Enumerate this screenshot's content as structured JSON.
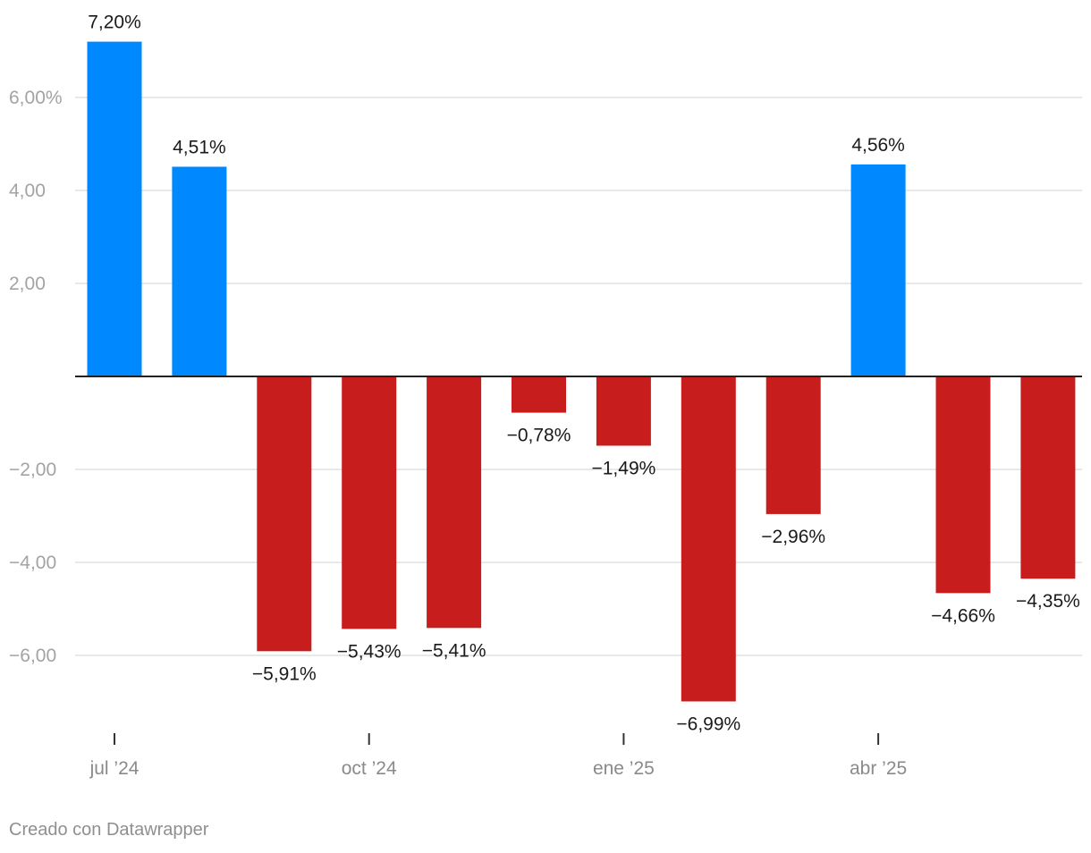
{
  "chart_data": {
    "type": "bar",
    "categories": [
      "jul 2024",
      "ago 2024",
      "sep 2024",
      "oct 2024",
      "nov 2024",
      "dic 2024",
      "ene 2025",
      "feb 2025",
      "mar 2025",
      "abr 2025",
      "may 2025",
      "jun 2025"
    ],
    "values": [
      7.2,
      4.51,
      -5.91,
      -5.43,
      -5.41,
      -0.78,
      -1.49,
      -6.99,
      -2.96,
      4.56,
      -4.66,
      -4.35
    ],
    "data_labels": [
      "7,20%",
      "4,51%",
      "−5,91%",
      "−5,43%",
      "−5,41%",
      "−0,78%",
      "−1,49%",
      "−6,99%",
      "−2,96%",
      "4,56%",
      "−4,66%",
      "−4,35%"
    ],
    "y_ticks": [
      {
        "value": 6,
        "label": "6,00%"
      },
      {
        "value": 4,
        "label": "4,00"
      },
      {
        "value": 2,
        "label": "2,00"
      },
      {
        "value": -2,
        "label": "−2,00"
      },
      {
        "value": -4,
        "label": "−4,00"
      },
      {
        "value": -6,
        "label": "−6,00"
      }
    ],
    "x_ticks": [
      {
        "value": 0,
        "label": "jul ’24"
      },
      {
        "value": 3,
        "label": "oct ’24"
      },
      {
        "value": 6,
        "label": "ene ’25"
      },
      {
        "value": 9,
        "label": "abr ’25"
      }
    ],
    "ylim": [
      -7.6,
      7.9
    ],
    "title": "",
    "xlabel": "",
    "ylabel": "",
    "grid": true,
    "colors": {
      "positive": "#0088ff",
      "negative": "#c71e1d",
      "grid": "#e0e0e0",
      "axis": "#222222"
    }
  },
  "footer": {
    "credit": "Creado con Datawrapper"
  }
}
